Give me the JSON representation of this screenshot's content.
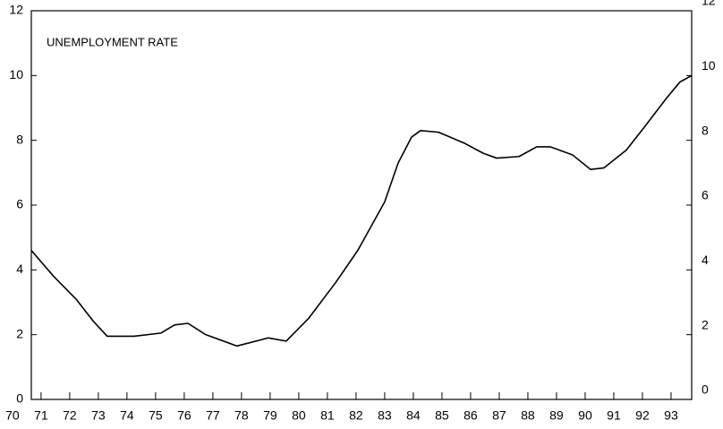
{
  "chart_data": {
    "type": "line",
    "title": "UNEMPLOYMENT RATE",
    "x": [
      70.66,
      71.44,
      72.22,
      72.84,
      73.31,
      74.25,
      75.19,
      75.66,
      76.13,
      76.75,
      77.84,
      78.94,
      79.56,
      80.34,
      81.28,
      82.06,
      83.0,
      83.47,
      83.94,
      84.25,
      84.88,
      85.81,
      86.44,
      86.91,
      87.69,
      88.31,
      88.78,
      89.56,
      90.19,
      90.66,
      91.44,
      92.06,
      92.84,
      93.31,
      93.72
    ],
    "series": [
      {
        "color": "#000000",
        "values": [
          4.6,
          3.8,
          3.1,
          2.4,
          1.95,
          1.95,
          2.05,
          2.3,
          2.35,
          2.0,
          1.65,
          1.9,
          1.8,
          2.5,
          3.6,
          4.6,
          6.1,
          7.3,
          8.1,
          8.3,
          8.25,
          7.9,
          7.6,
          7.45,
          7.5,
          7.8,
          7.8,
          7.55,
          7.1,
          7.15,
          7.7,
          8.4,
          9.3,
          9.8,
          10.0
        ]
      }
    ],
    "xlim": [
      70.66,
      93.72
    ],
    "xticks": [
      70,
      71,
      72,
      73,
      74,
      75,
      76,
      77,
      78,
      79,
      80,
      81,
      82,
      83,
      84,
      85,
      86,
      87,
      88,
      89,
      90,
      91,
      92,
      93
    ],
    "ylim": [
      0,
      12
    ],
    "yticks": [
      0,
      2,
      4,
      6,
      8,
      10,
      12
    ],
    "y2lim": [
      0,
      12
    ],
    "y2ticks": [
      0,
      2,
      4,
      6,
      8,
      10,
      12
    ],
    "grid": false
  }
}
